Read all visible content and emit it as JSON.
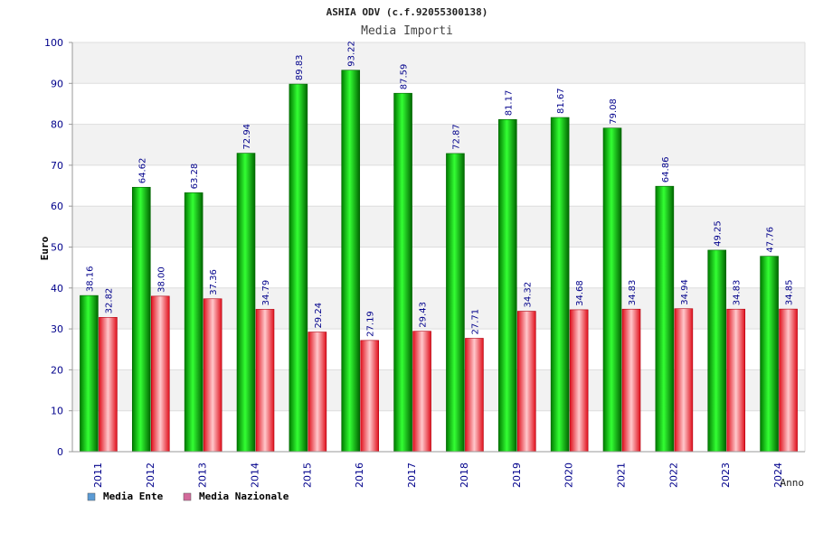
{
  "chart_data": {
    "type": "bar",
    "title": "ASHIA ODV (c.f.92055300138)",
    "subtitle": "Media Importi",
    "xlabel": "Anno",
    "ylabel": "Euro",
    "ylim": [
      0,
      100
    ],
    "yticks": [
      0,
      10,
      20,
      30,
      40,
      50,
      60,
      70,
      80,
      90,
      100
    ],
    "grid": true,
    "legend_position": "bottom-left",
    "categories": [
      "2011",
      "2012",
      "2013",
      "2014",
      "2015",
      "2016",
      "2017",
      "2018",
      "2019",
      "2020",
      "2021",
      "2022",
      "2023",
      "2024"
    ],
    "series": [
      {
        "name": "Media Ente",
        "legend_color": "#5b9bd5",
        "bar_color": "#00aa00",
        "values": [
          38.16,
          64.62,
          63.28,
          72.94,
          89.83,
          93.22,
          87.59,
          72.87,
          81.17,
          81.67,
          79.08,
          64.86,
          49.25,
          47.76
        ],
        "labels": [
          "38.16",
          "64.62",
          "63.28",
          "72.94",
          "89.83",
          "93.22",
          "87.59",
          "72.87",
          "81.17",
          "81.67",
          "79.08",
          "64.86",
          "49.25",
          "47.76"
        ]
      },
      {
        "name": "Media Nazionale",
        "legend_color": "#d36a9b",
        "bar_color": "#e8202a",
        "values": [
          32.82,
          38.0,
          37.36,
          34.79,
          29.24,
          27.19,
          29.43,
          27.71,
          34.32,
          34.68,
          34.83,
          34.94,
          34.83,
          34.85
        ],
        "labels": [
          "32.82",
          "38.00",
          "37.36",
          "34.79",
          "29.24",
          "27.19",
          "29.43",
          "27.71",
          "34.32",
          "34.68",
          "34.83",
          "34.94",
          "34.83",
          "34.85"
        ]
      }
    ]
  },
  "colors": {
    "axis_text": "#00008b",
    "band_fill": "#f2f2f2",
    "grid_line": "#dddddd"
  }
}
